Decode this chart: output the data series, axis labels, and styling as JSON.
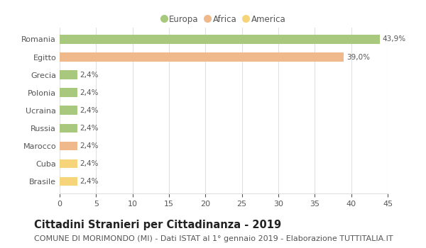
{
  "categories": [
    "Romania",
    "Egitto",
    "Grecia",
    "Polonia",
    "Ucraina",
    "Russia",
    "Marocco",
    "Cuba",
    "Brasile"
  ],
  "values": [
    43.9,
    39.0,
    2.4,
    2.4,
    2.4,
    2.4,
    2.4,
    2.4,
    2.4
  ],
  "labels": [
    "43,9%",
    "39,0%",
    "2,4%",
    "2,4%",
    "2,4%",
    "2,4%",
    "2,4%",
    "2,4%",
    "2,4%"
  ],
  "bar_colors": [
    "#a8c87e",
    "#f0b98b",
    "#a8c87e",
    "#a8c87e",
    "#a8c87e",
    "#a8c87e",
    "#f0b98b",
    "#f5d47a",
    "#f5d47a"
  ],
  "legend_labels": [
    "Europa",
    "Africa",
    "America"
  ],
  "legend_colors": [
    "#a8c87e",
    "#f0b98b",
    "#f5d47a"
  ],
  "title": "Cittadini Stranieri per Cittadinanza - 2019",
  "subtitle": "COMUNE DI MORIMONDO (MI) - Dati ISTAT al 1° gennaio 2019 - Elaborazione TUTTITALIA.IT",
  "xlim": [
    0,
    45
  ],
  "xticks": [
    0,
    5,
    10,
    15,
    20,
    25,
    30,
    35,
    40,
    45
  ],
  "background_color": "#ffffff",
  "grid_color": "#e0e0e0",
  "title_fontsize": 10.5,
  "subtitle_fontsize": 8,
  "label_fontsize": 7.5,
  "tick_fontsize": 8,
  "legend_fontsize": 8.5,
  "bar_height": 0.5
}
